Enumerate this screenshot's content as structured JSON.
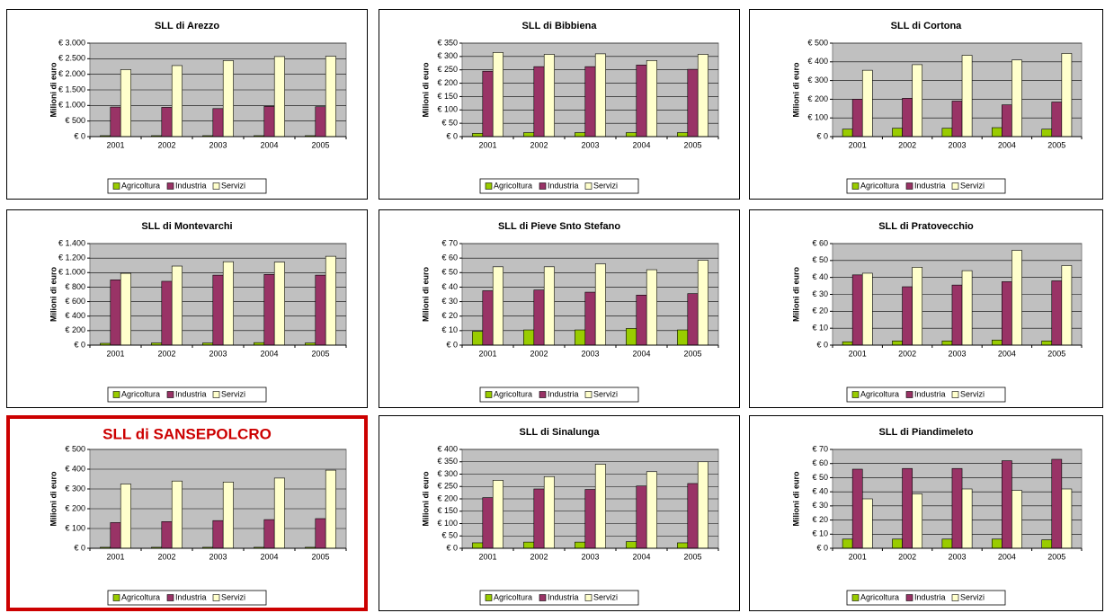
{
  "chart_data": [
    {
      "type": "bar",
      "title": "SLL di Arezzo",
      "y_label": "Milioni di euro",
      "categories": [
        "2001",
        "2002",
        "2003",
        "2004",
        "2005"
      ],
      "series": [
        {
          "name": "Agricoltura",
          "color": "#99cc00",
          "values": [
            30,
            30,
            30,
            30,
            30
          ]
        },
        {
          "name": "Industria",
          "color": "#993366",
          "values": [
            950,
            940,
            900,
            970,
            960
          ]
        },
        {
          "name": "Servizi",
          "color": "#ffffcc",
          "values": [
            2150,
            2280,
            2440,
            2570,
            2580
          ]
        }
      ],
      "ylim": [
        0,
        3000
      ],
      "yticks": [
        {
          "value": 0,
          "label": "€ 0"
        },
        {
          "value": 500,
          "label": "€ 500"
        },
        {
          "value": 1000,
          "label": "€ 1.000"
        },
        {
          "value": 1500,
          "label": "€ 1.500"
        },
        {
          "value": 2000,
          "label": "€ 2.000"
        },
        {
          "value": 2500,
          "label": "€ 2.500"
        },
        {
          "value": 3000,
          "label": "€ 3.000"
        }
      ],
      "grid": true,
      "legend": "bottom"
    },
    {
      "type": "bar",
      "title": "SLL di Bibbiena",
      "y_label": "Milioni di euro",
      "categories": [
        "2001",
        "2002",
        "2003",
        "2004",
        "2005"
      ],
      "series": [
        {
          "name": "Agricoltura",
          "color": "#99cc00",
          "values": [
            12,
            15,
            15,
            15,
            15
          ]
        },
        {
          "name": "Industria",
          "color": "#993366",
          "values": [
            245,
            262,
            262,
            268,
            252
          ]
        },
        {
          "name": "Servizi",
          "color": "#ffffcc",
          "values": [
            315,
            308,
            310,
            285,
            308
          ]
        }
      ],
      "ylim": [
        0,
        350
      ],
      "yticks": [
        {
          "value": 0,
          "label": "€ 0"
        },
        {
          "value": 50,
          "label": "€ 50"
        },
        {
          "value": 100,
          "label": "€ 100"
        },
        {
          "value": 150,
          "label": "€ 150"
        },
        {
          "value": 200,
          "label": "€ 200"
        },
        {
          "value": 250,
          "label": "€ 250"
        },
        {
          "value": 300,
          "label": "€ 300"
        },
        {
          "value": 350,
          "label": "€ 350"
        }
      ],
      "grid": true,
      "legend": "bottom"
    },
    {
      "type": "bar",
      "title": "SLL di Cortona",
      "y_label": "Milioni di euro",
      "categories": [
        "2001",
        "2002",
        "2003",
        "2004",
        "2005"
      ],
      "series": [
        {
          "name": "Agricoltura",
          "color": "#99cc00",
          "values": [
            40,
            45,
            45,
            48,
            40
          ]
        },
        {
          "name": "Industria",
          "color": "#993366",
          "values": [
            200,
            205,
            190,
            170,
            185
          ]
        },
        {
          "name": "Servizi",
          "color": "#ffffcc",
          "values": [
            355,
            385,
            435,
            410,
            445
          ]
        }
      ],
      "ylim": [
        0,
        500
      ],
      "yticks": [
        {
          "value": 0,
          "label": "€ 0"
        },
        {
          "value": 100,
          "label": "€ 100"
        },
        {
          "value": 200,
          "label": "€ 200"
        },
        {
          "value": 300,
          "label": "€ 300"
        },
        {
          "value": 400,
          "label": "€ 400"
        },
        {
          "value": 500,
          "label": "€ 500"
        }
      ],
      "grid": true,
      "legend": "bottom"
    },
    {
      "type": "bar",
      "title": "SLL di Montevarchi",
      "y_label": "Milioni di euro",
      "categories": [
        "2001",
        "2002",
        "2003",
        "2004",
        "2005"
      ],
      "series": [
        {
          "name": "Agricoltura",
          "color": "#99cc00",
          "values": [
            25,
            30,
            30,
            35,
            30
          ]
        },
        {
          "name": "Industria",
          "color": "#993366",
          "values": [
            900,
            880,
            965,
            975,
            965
          ]
        },
        {
          "name": "Servizi",
          "color": "#ffffcc",
          "values": [
            990,
            1090,
            1150,
            1145,
            1225
          ]
        }
      ],
      "ylim": [
        0,
        1400
      ],
      "yticks": [
        {
          "value": 0,
          "label": "€ 0"
        },
        {
          "value": 200,
          "label": "€ 200"
        },
        {
          "value": 400,
          "label": "€ 400"
        },
        {
          "value": 600,
          "label": "€ 600"
        },
        {
          "value": 800,
          "label": "€ 800"
        },
        {
          "value": 1000,
          "label": "€ 1.000"
        },
        {
          "value": 1200,
          "label": "€ 1.200"
        },
        {
          "value": 1400,
          "label": "€ 1.400"
        }
      ],
      "grid": true,
      "legend": "bottom"
    },
    {
      "type": "bar",
      "title": "SLL di Pieve Snto Stefano",
      "y_label": "Milioni di euro",
      "categories": [
        "2001",
        "2002",
        "2003",
        "2004",
        "2005"
      ],
      "series": [
        {
          "name": "Agricoltura",
          "color": "#99cc00",
          "values": [
            9.5,
            10.5,
            10.5,
            11.5,
            10.5
          ]
        },
        {
          "name": "Industria",
          "color": "#993366",
          "values": [
            37.5,
            38,
            36.5,
            34.5,
            35.5
          ]
        },
        {
          "name": "Servizi",
          "color": "#ffffcc",
          "values": [
            54,
            54,
            56,
            52,
            58.5
          ]
        }
      ],
      "ylim": [
        0,
        70
      ],
      "yticks": [
        {
          "value": 0,
          "label": "€ 0"
        },
        {
          "value": 10,
          "label": "€ 10"
        },
        {
          "value": 20,
          "label": "€ 20"
        },
        {
          "value": 30,
          "label": "€ 30"
        },
        {
          "value": 40,
          "label": "€ 40"
        },
        {
          "value": 50,
          "label": "€ 50"
        },
        {
          "value": 60,
          "label": "€ 60"
        },
        {
          "value": 70,
          "label": "€ 70"
        }
      ],
      "grid": true,
      "legend": "bottom"
    },
    {
      "type": "bar",
      "title": "SLL di Pratovecchio",
      "y_label": "Milioni di euro",
      "categories": [
        "2001",
        "2002",
        "2003",
        "2004",
        "2005"
      ],
      "series": [
        {
          "name": "Agricoltura",
          "color": "#99cc00",
          "values": [
            2,
            2.5,
            2.5,
            3,
            2.5
          ]
        },
        {
          "name": "Industria",
          "color": "#993366",
          "values": [
            41.5,
            34.5,
            35.5,
            37.5,
            38
          ]
        },
        {
          "name": "Servizi",
          "color": "#ffffcc",
          "values": [
            42.5,
            46,
            44,
            56,
            47
          ]
        }
      ],
      "ylim": [
        0,
        60
      ],
      "yticks": [
        {
          "value": 0,
          "label": "€ 0"
        },
        {
          "value": 10,
          "label": "€ 10"
        },
        {
          "value": 20,
          "label": "€ 20"
        },
        {
          "value": 30,
          "label": "€ 30"
        },
        {
          "value": 40,
          "label": "€ 40"
        },
        {
          "value": 50,
          "label": "€ 50"
        },
        {
          "value": 60,
          "label": "€ 60"
        }
      ],
      "grid": true,
      "legend": "bottom"
    },
    {
      "type": "bar",
      "title": "SLL di SANSEPOLCRO",
      "title_color": "#cc0000",
      "border_color": "#cc0000",
      "y_label": "Milioni di euro",
      "categories": [
        "2001",
        "2002",
        "2003",
        "2004",
        "2005"
      ],
      "series": [
        {
          "name": "Agricoltura",
          "color": "#99cc00",
          "values": [
            5,
            5,
            5,
            5,
            5
          ]
        },
        {
          "name": "Industria",
          "color": "#993366",
          "values": [
            130,
            135,
            140,
            145,
            150
          ]
        },
        {
          "name": "Servizi",
          "color": "#ffffcc",
          "values": [
            325,
            340,
            335,
            355,
            395
          ]
        }
      ],
      "ylim": [
        0,
        500
      ],
      "yticks": [
        {
          "value": 0,
          "label": "€ 0"
        },
        {
          "value": 100,
          "label": "€ 100"
        },
        {
          "value": 200,
          "label": "€ 200"
        },
        {
          "value": 300,
          "label": "€ 300"
        },
        {
          "value": 400,
          "label": "€ 400"
        },
        {
          "value": 500,
          "label": "€ 500"
        }
      ],
      "grid": true,
      "legend": "bottom"
    },
    {
      "type": "bar",
      "title": "SLL di Sinalunga",
      "y_label": "Milioni di euro",
      "categories": [
        "2001",
        "2002",
        "2003",
        "2004",
        "2005"
      ],
      "series": [
        {
          "name": "Agricoltura",
          "color": "#99cc00",
          "values": [
            22,
            25,
            25,
            27,
            22
          ]
        },
        {
          "name": "Industria",
          "color": "#993366",
          "values": [
            205,
            240,
            238,
            252,
            262
          ]
        },
        {
          "name": "Servizi",
          "color": "#ffffcc",
          "values": [
            275,
            290,
            340,
            310,
            350
          ]
        }
      ],
      "ylim": [
        0,
        400
      ],
      "yticks": [
        {
          "value": 0,
          "label": "€ 0"
        },
        {
          "value": 50,
          "label": "€ 50"
        },
        {
          "value": 100,
          "label": "€ 100"
        },
        {
          "value": 150,
          "label": "€ 150"
        },
        {
          "value": 200,
          "label": "€ 200"
        },
        {
          "value": 250,
          "label": "€ 250"
        },
        {
          "value": 300,
          "label": "€ 300"
        },
        {
          "value": 350,
          "label": "€ 350"
        },
        {
          "value": 400,
          "label": "€ 400"
        }
      ],
      "grid": true,
      "legend": "bottom"
    },
    {
      "type": "bar",
      "title": "SLL di Piandimeleto",
      "y_label": "Milioni di euro",
      "categories": [
        "2001",
        "2002",
        "2003",
        "2004",
        "2005"
      ],
      "series": [
        {
          "name": "Agricoltura",
          "color": "#99cc00",
          "values": [
            6.5,
            6.5,
            6.5,
            6.5,
            6
          ]
        },
        {
          "name": "Industria",
          "color": "#993366",
          "values": [
            56,
            56.5,
            56.5,
            62,
            63
          ]
        },
        {
          "name": "Servizi",
          "color": "#ffffcc",
          "values": [
            35,
            38.5,
            42,
            41,
            42
          ]
        }
      ],
      "ylim": [
        0,
        70
      ],
      "yticks": [
        {
          "value": 0,
          "label": "€ 0"
        },
        {
          "value": 10,
          "label": "€ 10"
        },
        {
          "value": 20,
          "label": "€ 20"
        },
        {
          "value": 30,
          "label": "€ 30"
        },
        {
          "value": 40,
          "label": "€ 40"
        },
        {
          "value": 50,
          "label": "€ 50"
        },
        {
          "value": 60,
          "label": "€ 60"
        },
        {
          "value": 70,
          "label": "€ 70"
        }
      ],
      "grid": true,
      "legend": "bottom"
    }
  ]
}
